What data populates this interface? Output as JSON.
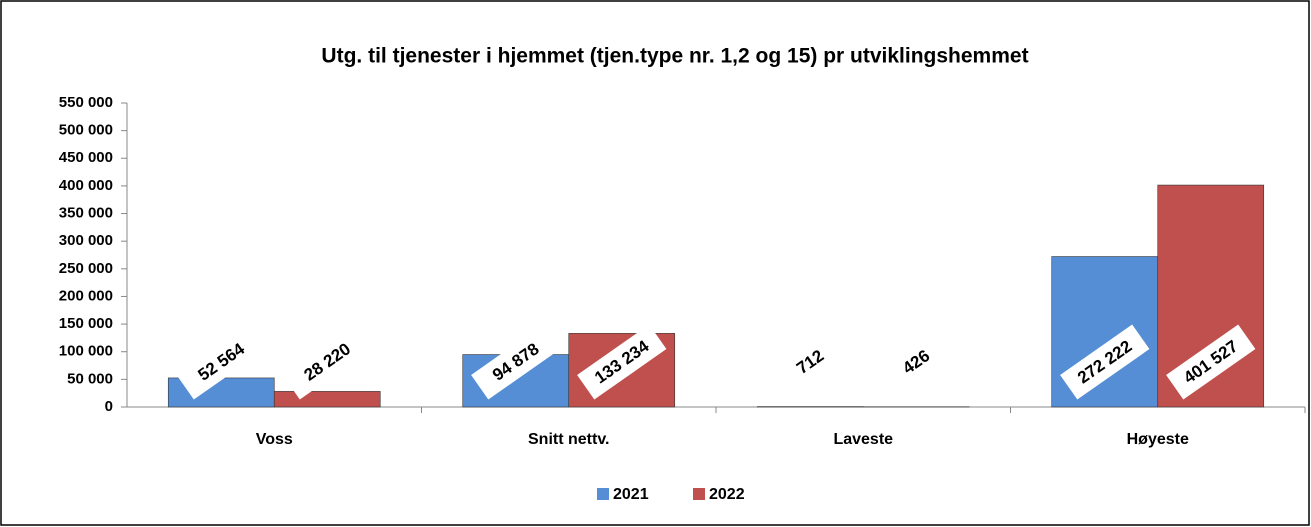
{
  "chart_data": {
    "type": "bar",
    "title": "Utg. til tjenester i hjemmet (tjen.type nr. 1,2 og 15) pr utviklingshemmet",
    "categories": [
      "Voss",
      "Snitt nettv.",
      "Laveste",
      "Høyeste"
    ],
    "series": [
      {
        "name": "2021",
        "color": "#558ed5",
        "values": [
          52564,
          94878,
          712,
          272222
        ],
        "value_labels": [
          "52 564",
          "94 878",
          "712",
          "272 222"
        ]
      },
      {
        "name": "2022",
        "color": "#c0504d",
        "values": [
          28220,
          133234,
          426,
          401527
        ],
        "value_labels": [
          "28 220",
          "133 234",
          "426",
          "401 527"
        ]
      }
    ],
    "ylim": [
      0,
      550000
    ],
    "yticks": [
      0,
      {
        "value": 50000,
        "label": "50 000"
      },
      {
        "value": 100000,
        "label": "100 000"
      },
      {
        "value": 150000,
        "label": "150 000"
      },
      {
        "value": 200000,
        "label": "200 000"
      },
      {
        "value": 250000,
        "label": "250 000"
      },
      {
        "value": 300000,
        "label": "300 000"
      },
      {
        "value": 350000,
        "label": "350 000"
      },
      {
        "value": 400000,
        "label": "400 000"
      },
      {
        "value": 450000,
        "label": "450 000"
      },
      {
        "value": 500000,
        "label": "500 000"
      },
      {
        "value": 550000,
        "label": "550 000"
      }
    ],
    "legend": "bottom"
  }
}
